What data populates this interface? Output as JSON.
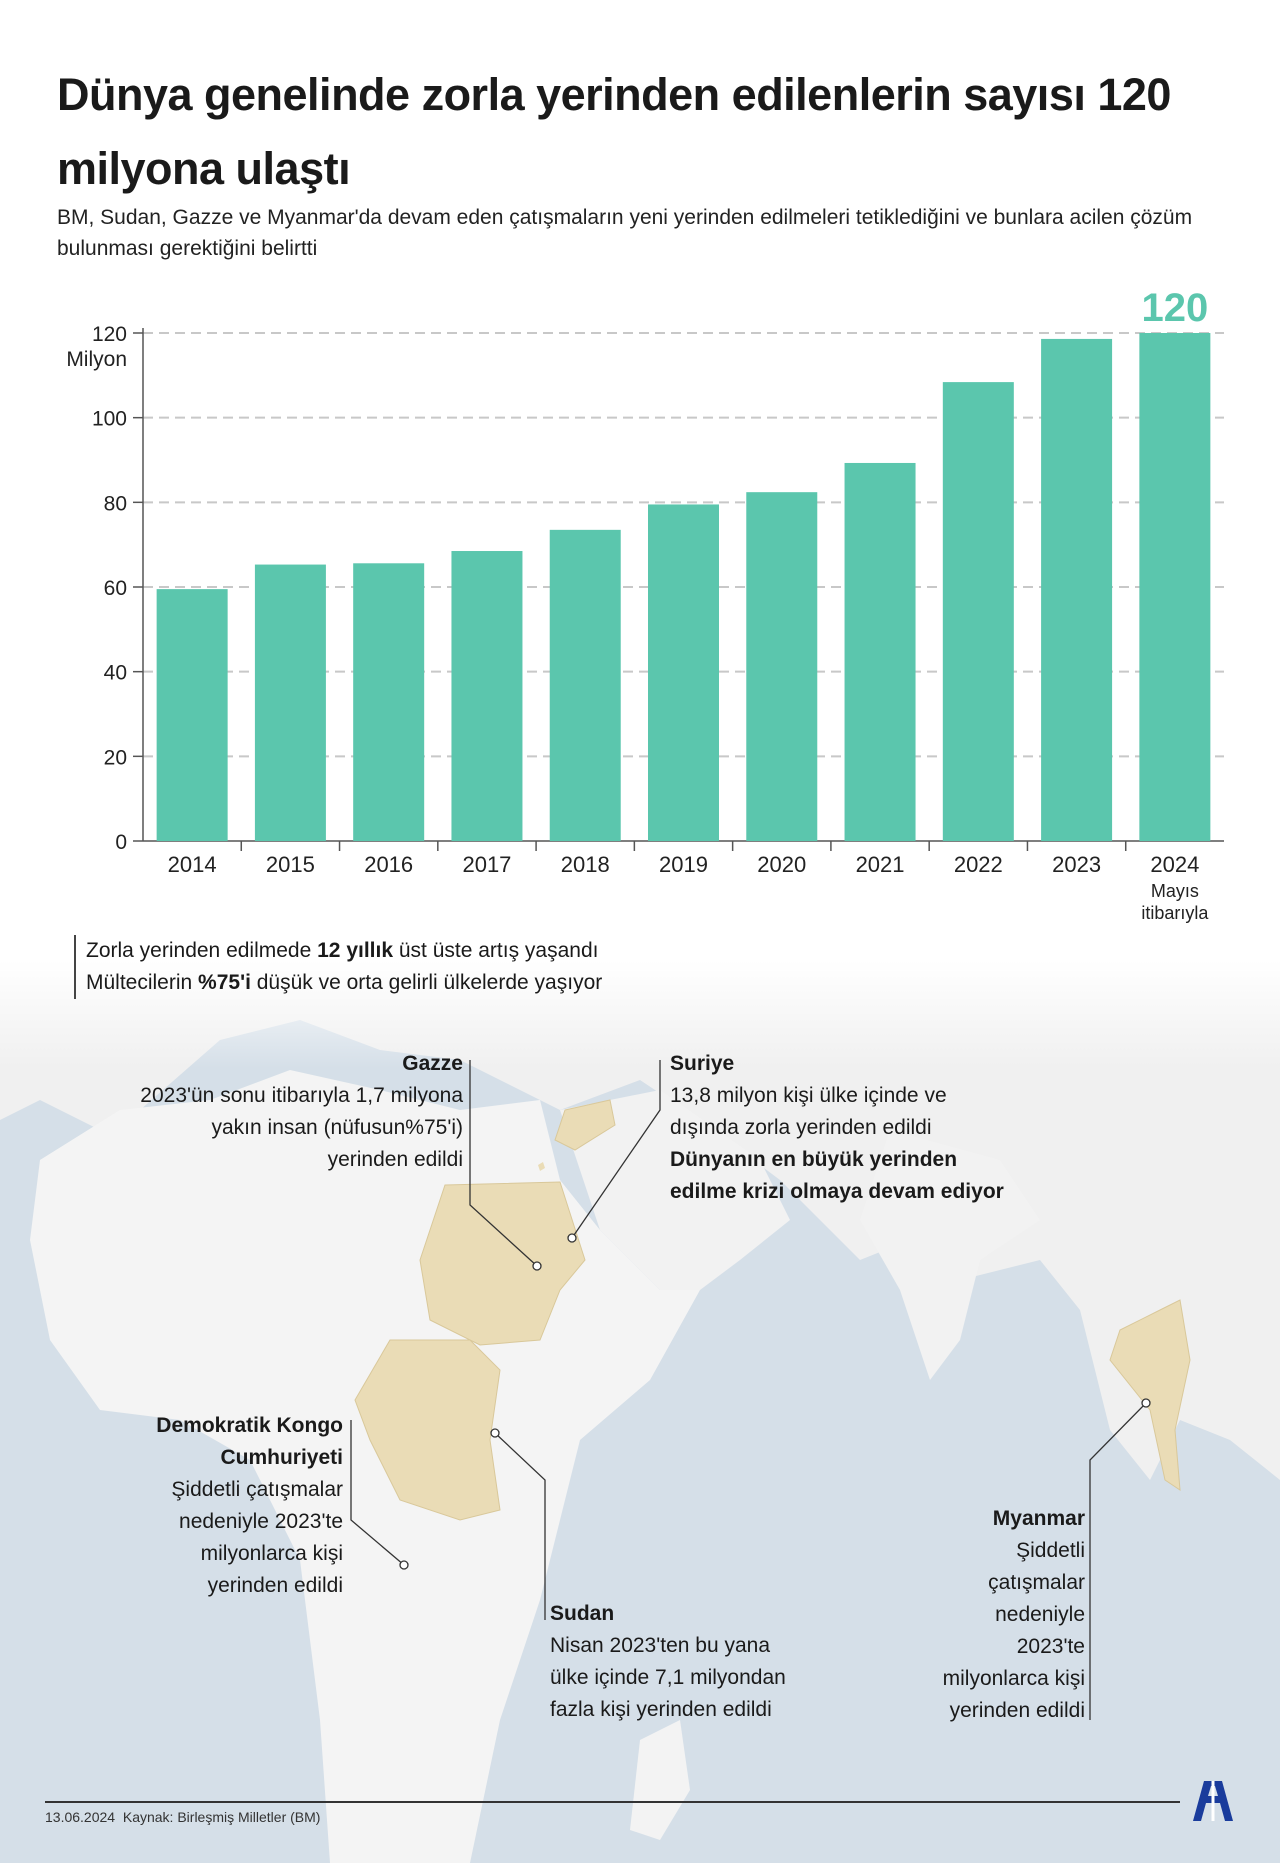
{
  "header": {
    "title": "Dünya genelinde zorla yerinden edilenlerin sayısı 120 milyona ulaştı",
    "subtitle": "BM, Sudan, Gazze ve Myanmar'da devam eden çatışmaların yeni yerinden edilmeleri tetiklediğini ve bunlara acilen çözüm bulunması gerektiğini belirtti"
  },
  "chart_data": {
    "type": "bar",
    "title": "",
    "ylabel": "Milyon",
    "xlabel": "",
    "ylim": [
      0,
      120
    ],
    "yticks": [
      0,
      20,
      40,
      60,
      80,
      100,
      120
    ],
    "categories": [
      "2014",
      "2015",
      "2016",
      "2017",
      "2018",
      "2019",
      "2020",
      "2021",
      "2022",
      "2023",
      "2024"
    ],
    "category_notes": {
      "2024": "Mayıs itibarıyla"
    },
    "values": [
      59.5,
      65.3,
      65.6,
      68.5,
      73.5,
      79.5,
      82.4,
      89.3,
      108.4,
      118.6,
      120
    ],
    "highlight_label": "120",
    "grid": true,
    "color": "#5bc6ad"
  },
  "notes": [
    {
      "pre": "Zorla yerinden edilmede ",
      "bold": "12 yıllık",
      "post": " üst üste artış yaşandı"
    },
    {
      "pre": "Mültecilerin ",
      "bold": "%75'i",
      "post": " düşük ve orta gelirli ülkelerde yaşıyor"
    }
  ],
  "annotations": {
    "gazze": {
      "title": "Gazze",
      "lines": [
        "2023'ün sonu itibarıyla 1,7 milyona",
        "yakın insan (nüfusun%75'i)",
        "yerinden edildi"
      ]
    },
    "suriye": {
      "title": "Suriye",
      "lines": [
        "13,8 milyon kişi ülke içinde ve",
        "dışında zorla yerinden edildi"
      ],
      "bold_lines": [
        "Dünyanın en büyük yerinden",
        "edilme krizi olmaya devam ediyor"
      ]
    },
    "kongo": {
      "title": [
        "Demokratik Kongo",
        "Cumhuriyeti"
      ],
      "lines": [
        "Şiddetli çatışmalar",
        "nedeniyle 2023'te",
        "milyonlarca kişi",
        "yerinden edildi"
      ]
    },
    "sudan": {
      "title": "Sudan",
      "lines": [
        "Nisan 2023'ten bu yana",
        "ülke içinde 7,1 milyondan",
        "fazla kişi yerinden edildi"
      ]
    },
    "myanmar": {
      "title": "Myanmar",
      "lines": [
        "Şiddetli",
        "çatışmalar",
        "nedeniyle",
        "2023'te",
        "milyonlarca kişi",
        "yerinden edildi"
      ]
    }
  },
  "footer": {
    "date": "13.06.2024",
    "source": "Kaynak: Birleşmiş Milletler (BM)",
    "logo": "AA"
  },
  "colors": {
    "bar": "#5bc6ad",
    "highlight": "#5bc6ad",
    "sea": "#d5dfe8",
    "land": "#f1f1f1",
    "affected": "#eadcb6",
    "logo": "#1a3c9c"
  }
}
